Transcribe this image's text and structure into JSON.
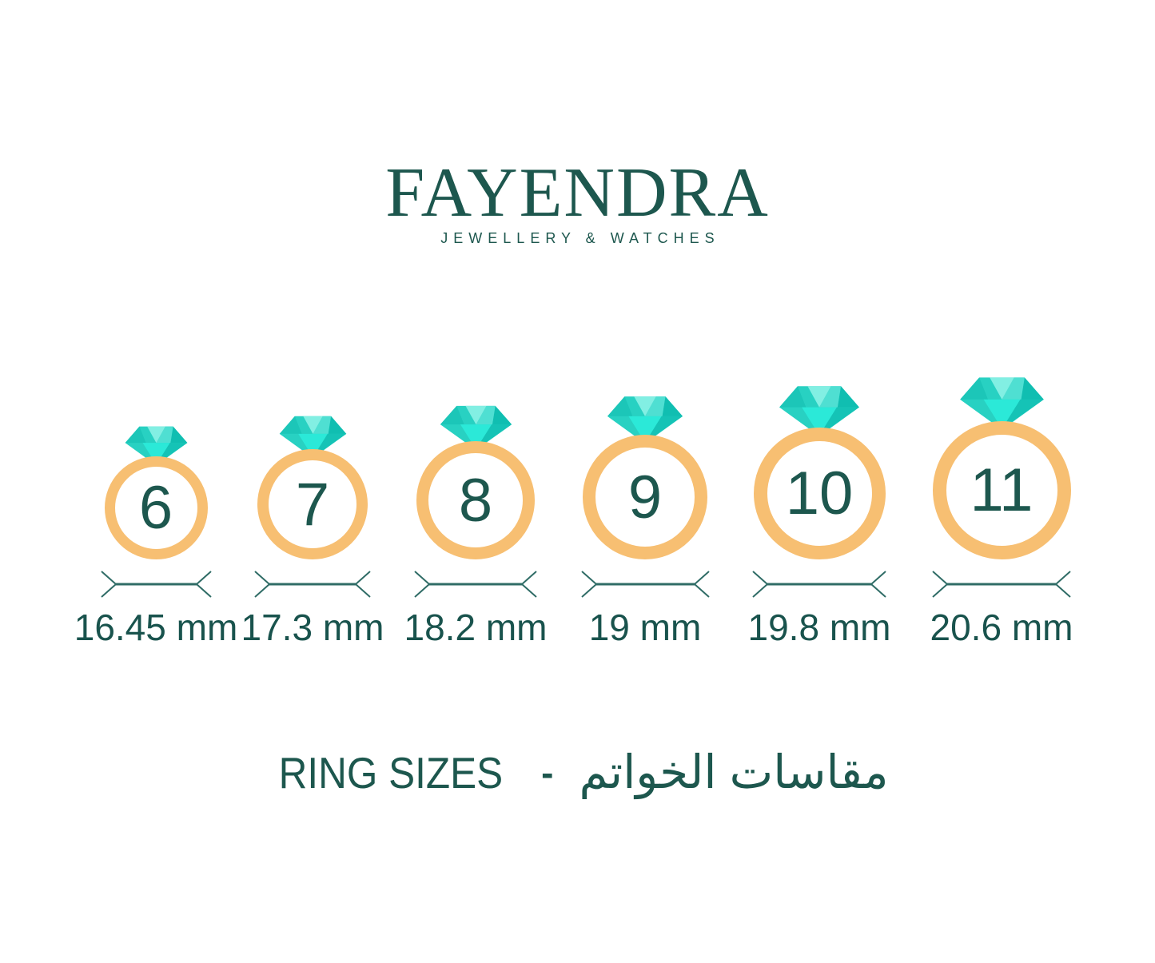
{
  "brand": {
    "name": "FAYENDRA",
    "tagline": "JEWELLERY & WATCHES"
  },
  "title": {
    "en": "RING SIZES",
    "separator": "-",
    "ar": "مقاسات الخواتم"
  },
  "rings": [
    {
      "size": "6",
      "diameter_mm": 16.45,
      "diameter_label": "16.45 mm"
    },
    {
      "size": "7",
      "diameter_mm": 17.3,
      "diameter_label": "17.3 mm"
    },
    {
      "size": "8",
      "diameter_mm": 18.2,
      "diameter_label": "18.2 mm"
    },
    {
      "size": "9",
      "diameter_mm": 19.0,
      "diameter_label": "19 mm"
    },
    {
      "size": "10",
      "diameter_mm": 19.8,
      "diameter_label": "19.8 mm"
    },
    {
      "size": "11",
      "diameter_mm": 20.6,
      "diameter_label": "20.6 mm"
    }
  ],
  "icons": {
    "gem": "diamond-icon",
    "band": "ring-band",
    "dimension": "diameter-dimension-line"
  },
  "colors": {
    "brand_teal": "#1D574E",
    "text_teal": "#19534D",
    "line_teal": "#2F6C66",
    "band_orange": "#F7BF72",
    "diamond": {
      "base": "#28D1C2",
      "left_shade": "#1CC6B8",
      "dark": "#10BEB1",
      "light": "#82EFE3",
      "mid_light": "#4FDFD2",
      "pavilion": "#2BE9D8",
      "pavilion_dark": "#15C3B6"
    }
  }
}
